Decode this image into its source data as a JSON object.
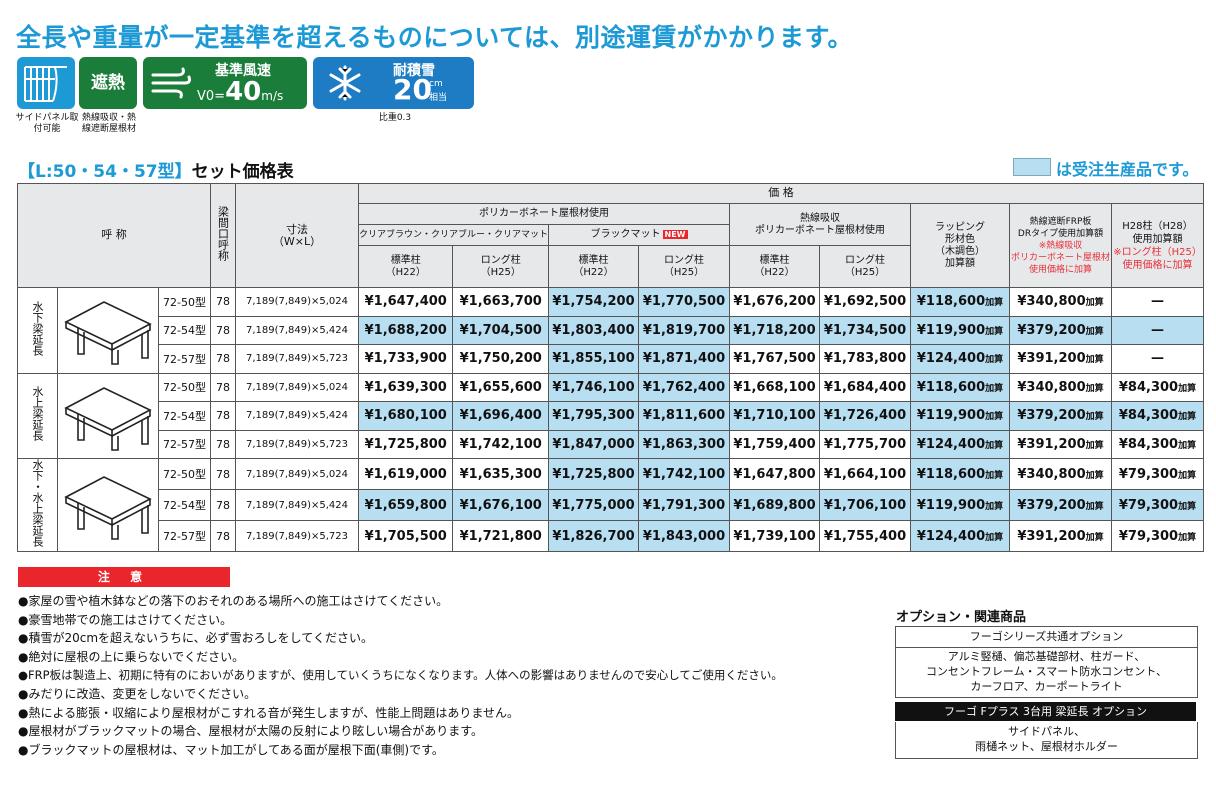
{
  "headline": "全長や重量が一定基準を超えるものについては、別途運賃がかかります。",
  "icons": {
    "side_panel_caption": "サイドパネル取付可能",
    "shading_label": "遮熱",
    "shading_caption": "熱線吸収・熱線遮断屋根材",
    "wind_title": "基準風速",
    "wind_prefix": "V0=",
    "wind_value": "40",
    "wind_unit": "m/s",
    "snow_title": "耐積雪",
    "snow_value": "20",
    "snow_unit_top": "cm",
    "snow_unit_bottom": "相当",
    "snow_caption": "比重0.3"
  },
  "section": {
    "title_colored": "【L:50・54・57型】",
    "title_plain": "セット価格表",
    "legend_text": "は受注生産品です。"
  },
  "table": {
    "headers": {
      "name": "呼 称",
      "beam": "梁間口呼称",
      "size": "寸法",
      "size_sub": "（W×L）",
      "price": "価 格",
      "poly": "ポリカーボネート屋根材使用",
      "clear": "クリアブラウン・クリアブルー・クリアマット",
      "black": "ブラックマット",
      "new_badge": "NEW",
      "heat": "熱線吸収",
      "heat2": "ポリカーボネート屋根材使用",
      "std_post": "標準柱",
      "std_post_sub": "（H22）",
      "long_post": "ロング柱",
      "long_post_sub": "（H25）",
      "wrap1": "ラッピング",
      "wrap2": "形材色",
      "wrap3": "（木調色）",
      "wrap4": "加算額",
      "frp1": "熱線遮断FRP板",
      "frp2": "DRタイプ使用加算額",
      "frp3": "※熱線吸収",
      "frp4": "ポリカーボネート屋根材",
      "frp5": "使用価格に加算",
      "h28_1": "H28柱（H28）",
      "h28_2": "使用加算額",
      "h28_3": "※ロング柱（H25）",
      "h28_4": "使用価格に加算"
    },
    "add_suffix": "加算",
    "groups": [
      {
        "name": "水下梁延長",
        "rows": [
          {
            "model": "72-50型",
            "beam": "78",
            "size": "7,189(7,849)×5,024",
            "c1": "¥1,647,400",
            "c2": "¥1,663,700",
            "b1": "¥1,754,200",
            "b2": "¥1,770,500",
            "h1": "¥1,676,200",
            "h2": "¥1,692,500",
            "wrap": "¥118,600",
            "frp": "¥340,800",
            "h28": "—",
            "hl": false
          },
          {
            "model": "72-54型",
            "beam": "78",
            "size": "7,189(7,849)×5,424",
            "c1": "¥1,688,200",
            "c2": "¥1,704,500",
            "b1": "¥1,803,400",
            "b2": "¥1,819,700",
            "h1": "¥1,718,200",
            "h2": "¥1,734,500",
            "wrap": "¥119,900",
            "frp": "¥379,200",
            "h28": "—",
            "hl": true
          },
          {
            "model": "72-57型",
            "beam": "78",
            "size": "7,189(7,849)×5,723",
            "c1": "¥1,733,900",
            "c2": "¥1,750,200",
            "b1": "¥1,855,100",
            "b2": "¥1,871,400",
            "h1": "¥1,767,500",
            "h2": "¥1,783,800",
            "wrap": "¥124,400",
            "frp": "¥391,200",
            "h28": "—",
            "hl": false
          }
        ]
      },
      {
        "name": "水上梁延長",
        "rows": [
          {
            "model": "72-50型",
            "beam": "78",
            "size": "7,189(7,849)×5,024",
            "c1": "¥1,639,300",
            "c2": "¥1,655,600",
            "b1": "¥1,746,100",
            "b2": "¥1,762,400",
            "h1": "¥1,668,100",
            "h2": "¥1,684,400",
            "wrap": "¥118,600",
            "frp": "¥340,800",
            "h28": "¥84,300",
            "hl": false
          },
          {
            "model": "72-54型",
            "beam": "78",
            "size": "7,189(7,849)×5,424",
            "c1": "¥1,680,100",
            "c2": "¥1,696,400",
            "b1": "¥1,795,300",
            "b2": "¥1,811,600",
            "h1": "¥1,710,100",
            "h2": "¥1,726,400",
            "wrap": "¥119,900",
            "frp": "¥379,200",
            "h28": "¥84,300",
            "hl": true
          },
          {
            "model": "72-57型",
            "beam": "78",
            "size": "7,189(7,849)×5,723",
            "c1": "¥1,725,800",
            "c2": "¥1,742,100",
            "b1": "¥1,847,000",
            "b2": "¥1,863,300",
            "h1": "¥1,759,400",
            "h2": "¥1,775,700",
            "wrap": "¥124,400",
            "frp": "¥391,200",
            "h28": "¥84,300",
            "hl": false
          }
        ]
      },
      {
        "name": "水下・水上梁延長",
        "rows": [
          {
            "model": "72-50型",
            "beam": "78",
            "size": "7,189(7,849)×5,024",
            "c1": "¥1,619,000",
            "c2": "¥1,635,300",
            "b1": "¥1,725,800",
            "b2": "¥1,742,100",
            "h1": "¥1,647,800",
            "h2": "¥1,664,100",
            "wrap": "¥118,600",
            "frp": "¥340,800",
            "h28": "¥79,300",
            "hl": false
          },
          {
            "model": "72-54型",
            "beam": "78",
            "size": "7,189(7,849)×5,424",
            "c1": "¥1,659,800",
            "c2": "¥1,676,100",
            "b1": "¥1,775,000",
            "b2": "¥1,791,300",
            "h1": "¥1,689,800",
            "h2": "¥1,706,100",
            "wrap": "¥119,900",
            "frp": "¥379,200",
            "h28": "¥79,300",
            "hl": true
          },
          {
            "model": "72-57型",
            "beam": "78",
            "size": "7,189(7,849)×5,723",
            "c1": "¥1,705,500",
            "c2": "¥1,721,800",
            "b1": "¥1,826,700",
            "b2": "¥1,843,000",
            "h1": "¥1,739,100",
            "h2": "¥1,755,400",
            "wrap": "¥124,400",
            "frp": "¥391,200",
            "h28": "¥79,300",
            "hl": false
          }
        ]
      }
    ]
  },
  "caution": {
    "title": "注 意",
    "notes": [
      "●家屋の雪や植木鉢などの落下のおそれのある場所への施工はさけてください。",
      "●豪雪地帯での施工はさけてください。",
      "●積雪が20cmを超えないうちに、必ず雪おろしをしてください。",
      "●絶対に屋根の上に乗らないでください。",
      "●FRP板は製造上、初期に特有のにおいがありますが、使用していくうちになくなります。人体への影響はありませんので安心してご使用ください。",
      "●みだりに改造、変更をしないでください。",
      "●熱による膨張・収縮により屋根材がこすれる音が発生しますが、性能上問題はありません。",
      "●屋根材がブラックマットの場合、屋根材が太陽の反射により眩しい場合があります。",
      "●ブラックマットの屋根材は、マット加工がしてある面が屋根下面(車側)です。"
    ]
  },
  "options": {
    "title": "オプション・関連商品",
    "box1_header": "フーゴシリーズ共通オプション",
    "box1_lines": [
      "アルミ竪樋、偏芯基礎部材、柱ガード、",
      "コンセントフレーム・スマート防水コンセント、",
      "カーフロア、カーポートライト"
    ],
    "box2_header": "フーゴ Fプラス 3台用 梁延長 オプション",
    "box2_lines": [
      "サイドパネル、",
      "雨樋ネット、屋根材ホルダー"
    ]
  }
}
